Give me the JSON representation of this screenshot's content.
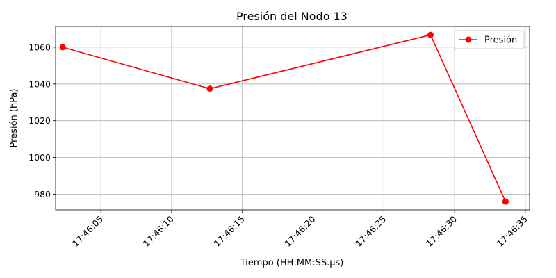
{
  "chart_data": {
    "type": "line",
    "title": "Presión del Nodo 13",
    "xlabel": "Tiempo (HH:MM:SS.µs)",
    "ylabel": "Presión (hPa)",
    "x_tick_labels": [
      "17:46:05",
      "17:46:10",
      "17:46:15",
      "17:46:20",
      "17:46:25",
      "17:46:30",
      "17:46:35"
    ],
    "x_ticks": [
      "17:46:05",
      "17:46:10",
      "17:46:15",
      "17:46:20",
      "17:46:25",
      "17:46:30",
      "17:46:35"
    ],
    "xlim": [
      "17:46:01.8",
      "17:46:35.3"
    ],
    "y_ticks": [
      980,
      1000,
      1020,
      1040,
      1060
    ],
    "ylim": [
      971.5,
      1071.3
    ],
    "grid": true,
    "legend_position": "top-right",
    "series": [
      {
        "name": "Presión",
        "color": "#ff0000",
        "marker": "circle",
        "points": [
          {
            "x": "17:46:02.3",
            "y": 1060.0
          },
          {
            "x": "17:46:12.7",
            "y": 1037.4
          },
          {
            "x": "17:46:28.3",
            "y": 1066.7
          },
          {
            "x": "17:46:33.6",
            "y": 976.0
          }
        ]
      }
    ]
  }
}
